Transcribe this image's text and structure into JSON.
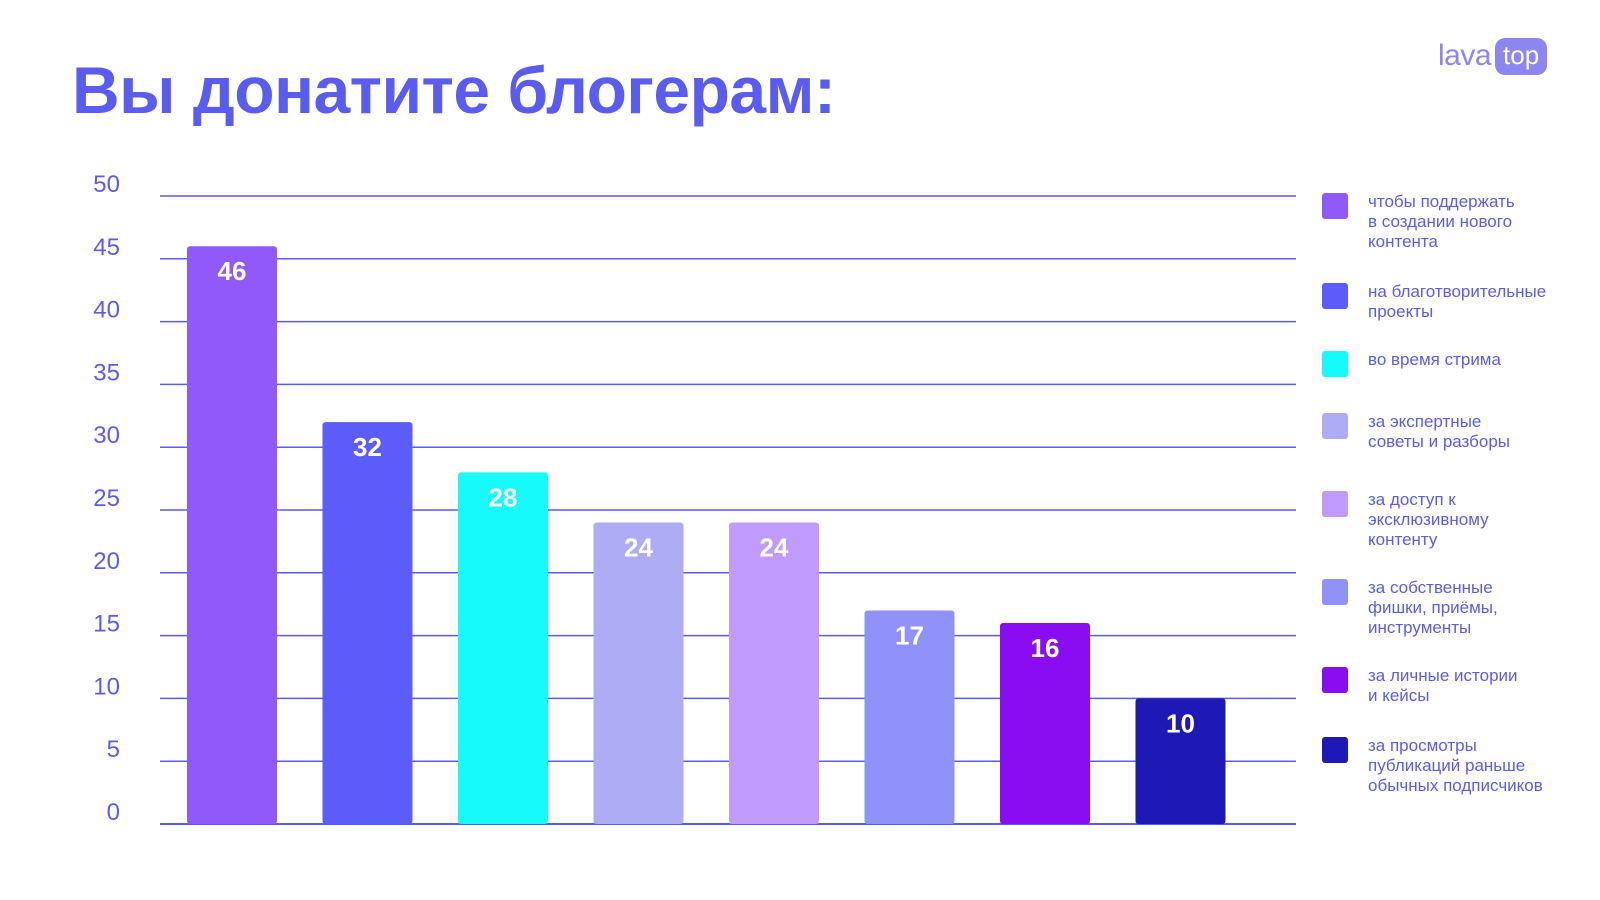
{
  "title": "Вы донатите блогерам:",
  "logo": {
    "text": "lava",
    "badge": "top"
  },
  "chart_data": {
    "type": "bar",
    "title": "Вы донатите блогерам:",
    "ylim": [
      0,
      50
    ],
    "yticks": [
      0,
      5,
      10,
      15,
      20,
      25,
      30,
      35,
      40,
      45,
      50
    ],
    "grid": true,
    "legend_position": "right",
    "categories": [
      "чтобы поддержать\nв создании нового\nконтента",
      "на благотворительные\nпроекты",
      "во время стрима",
      "за экспертные\nсоветы и разборы",
      "за доступ к\nэксклюзивному\nконтенту",
      "за собственные\nфишки, приёмы,\nинструменты",
      "за личные истории\nи кейсы",
      "за просмотры\nпубликаций раньше\nобычных подписчиков"
    ],
    "values": [
      46,
      32,
      28,
      24,
      24,
      17,
      16,
      10
    ],
    "colors": [
      "#9259fa",
      "#5b5cfa",
      "#16fafc",
      "#afacf6",
      "#c19bfc",
      "#9191fa",
      "#8a0df2",
      "#1e18b4"
    ]
  }
}
